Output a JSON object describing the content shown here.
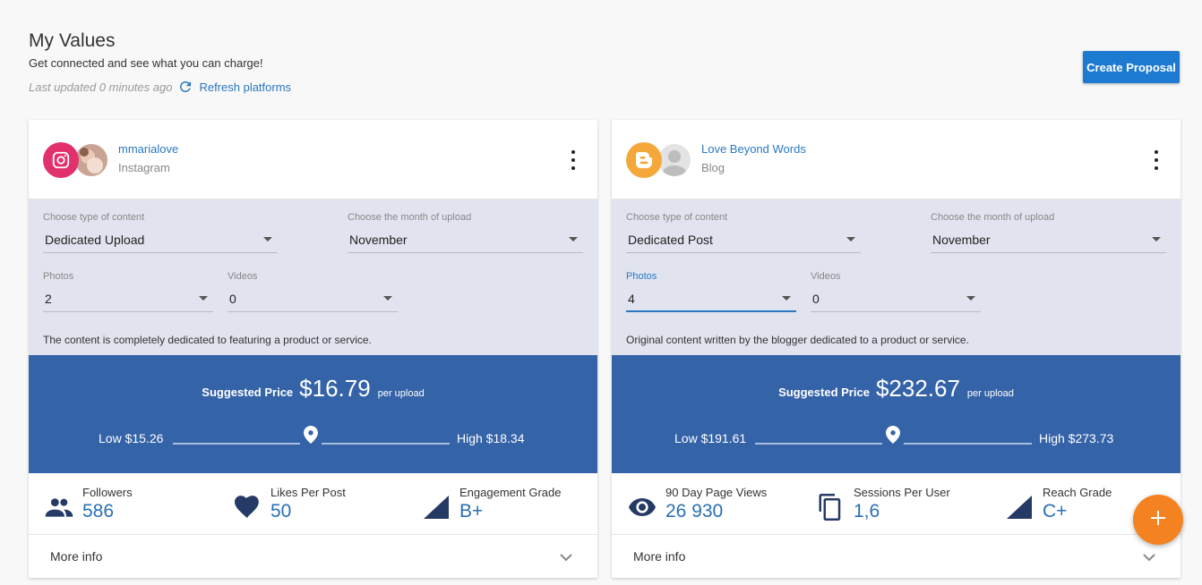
{
  "header": {
    "title": "My Values",
    "subtitle": "Get connected and see what you can charge!",
    "last_updated": "Last updated 0 minutes ago",
    "refresh_label": "Refresh platforms",
    "create_proposal_label": "Create Proposal"
  },
  "cards": [
    {
      "account_name": "mmarialove",
      "platform": "Instagram",
      "platform_icon": "instagram-icon",
      "content_type": {
        "label": "Choose type of content",
        "value": "Dedicated Upload"
      },
      "month": {
        "label": "Choose the month of upload",
        "value": "November"
      },
      "photos": {
        "label": "Photos",
        "value": "2"
      },
      "videos": {
        "label": "Videos",
        "value": "0"
      },
      "description": "The content is completely dedicated to featuring a product or service.",
      "price": {
        "label": "Suggested Price",
        "value": "$16.79",
        "unit": "per upload",
        "low": "Low $15.26",
        "high": "High $18.34"
      },
      "stats": [
        {
          "label": "Followers",
          "value": "586",
          "icon": "people-icon"
        },
        {
          "label": "Likes Per Post",
          "value": "50",
          "icon": "heart-icon"
        },
        {
          "label": "Engagement Grade",
          "value": "B+",
          "icon": "grade-triangle-icon"
        }
      ],
      "more_info": "More info"
    },
    {
      "account_name": "Love Beyond Words",
      "platform": "Blog",
      "platform_icon": "blogger-icon",
      "content_type": {
        "label": "Choose type of content",
        "value": "Dedicated Post"
      },
      "month": {
        "label": "Choose the month of upload",
        "value": "November"
      },
      "photos": {
        "label": "Photos",
        "value": "4"
      },
      "videos": {
        "label": "Videos",
        "value": "0"
      },
      "description": "Original content written by the blogger dedicated to a product or service.",
      "price": {
        "label": "Suggested Price",
        "value": "$232.67",
        "unit": "per upload",
        "low": "Low $191.61",
        "high": "High $273.73"
      },
      "stats": [
        {
          "label": "90 Day Page Views",
          "value": "26 930",
          "icon": "eye-icon"
        },
        {
          "label": "Sessions Per User",
          "value": "1,6",
          "icon": "copy-icon"
        },
        {
          "label": "Reach Grade",
          "value": "C+",
          "icon": "grade-triangle-icon"
        }
      ],
      "more_info": "More info"
    }
  ],
  "colors": {
    "primary_blue": "#3563a8",
    "link_blue": "#2a78c0",
    "button_blue": "#1c7bd0",
    "fab_orange": "#f58220",
    "instagram_pink": "#e1306c",
    "blogger_orange": "#f4a83a",
    "config_bg": "#e1e4ef"
  },
  "fab_icon": "plus-icon"
}
